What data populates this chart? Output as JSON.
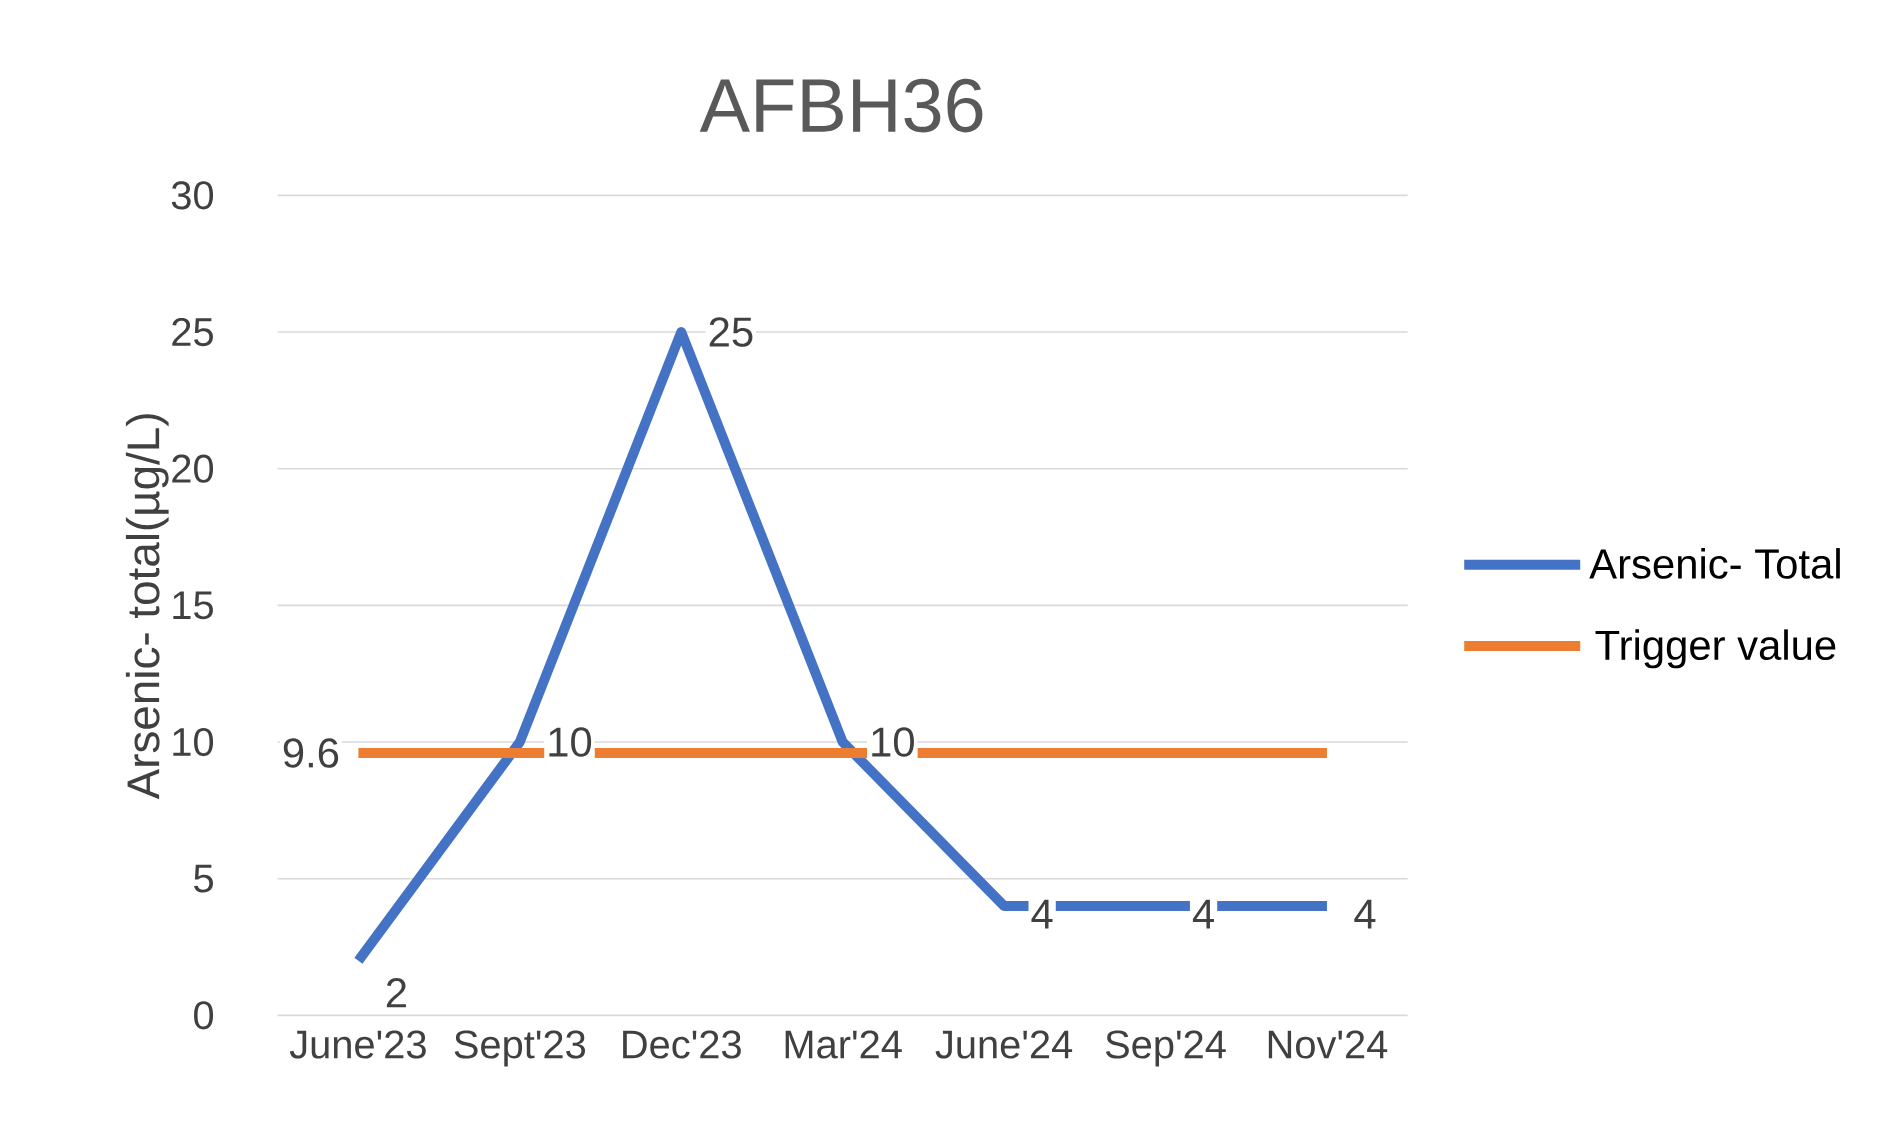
{
  "chart_data": {
    "type": "line",
    "title": "AFBH36",
    "ylabel": "Arsenic- total(µg/L)",
    "categories": [
      "June'23",
      "Sept'23",
      "Dec'23",
      "Mar'24",
      "June'24",
      "Sep'24",
      "Nov'24"
    ],
    "series": [
      {
        "name": "Arsenic- Total",
        "color": "#4472c4",
        "values": [
          2,
          10,
          25,
          10,
          4,
          4,
          4
        ],
        "value_labels": [
          "2",
          "10",
          "25",
          "10",
          "4",
          "4",
          "4"
        ]
      },
      {
        "name": "Trigger value",
        "color": "#ed7d31",
        "values": [
          9.6,
          9.6,
          9.6,
          9.6,
          9.6,
          9.6,
          9.6
        ],
        "value_labels": [
          "9.6",
          null,
          null,
          null,
          null,
          null,
          null
        ]
      }
    ],
    "ylim": [
      0,
      30
    ],
    "yticks": [
      0,
      5,
      10,
      15,
      20,
      25,
      30
    ],
    "grid": "y",
    "legend": "right",
    "marker": "none",
    "line_style": "solid"
  }
}
